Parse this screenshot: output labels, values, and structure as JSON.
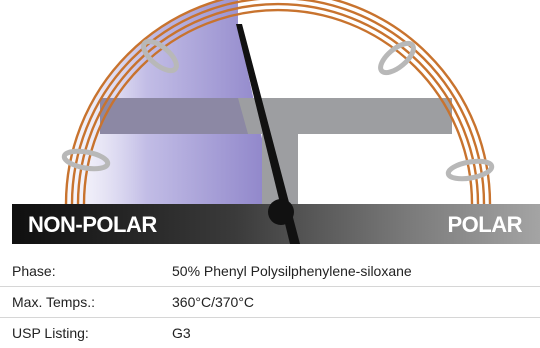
{
  "gauge": {
    "left_label": "NON-POLAR",
    "right_label": "POLAR",
    "colors": {
      "coil": "#c8732e",
      "bar_dark": "#111111",
      "bar_light": "#9a9a9a",
      "highlight": "#8c82c8",
      "gray_path": "#9d9ea1",
      "clip": "#b8b8b8"
    },
    "icons": [
      "column-coil-icon",
      "needle-pointer-icon"
    ]
  },
  "specs": [
    {
      "label": "Phase:",
      "value": "50% Phenyl Polysilphenylene-siloxane"
    },
    {
      "label": "Max. Temps.:",
      "value": "360°C/370°C"
    },
    {
      "label": "USP Listing:",
      "value": "G3"
    }
  ]
}
